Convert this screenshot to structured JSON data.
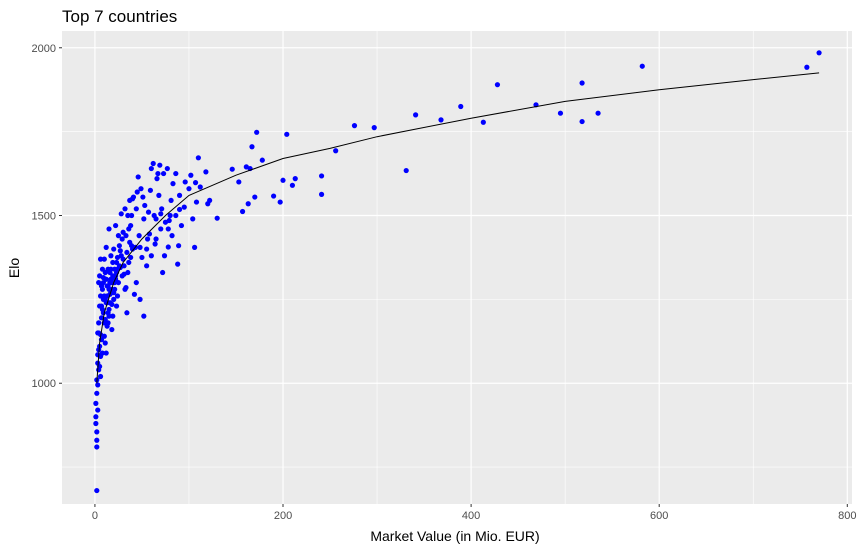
{
  "chart_data": {
    "type": "scatter",
    "title": "Top 7 countries",
    "xlabel": "Market Value (in Mio. EUR)",
    "ylabel": "Elo",
    "xlim": [
      -35,
      805
    ],
    "ylim": [
      640,
      2050
    ],
    "xticks": [
      0,
      200,
      400,
      600,
      800
    ],
    "yticks": [
      1000,
      1500,
      2000
    ],
    "grid": true,
    "point_color": "#0000FF",
    "trend_color": "#000000",
    "panel_background": "#EBEBEB",
    "points": [
      [
        770,
        1985
      ],
      [
        757,
        1942
      ],
      [
        582,
        1945
      ],
      [
        535,
        1805
      ],
      [
        518,
        1895
      ],
      [
        518,
        1780
      ],
      [
        495,
        1805
      ],
      [
        469,
        1830
      ],
      [
        428,
        1890
      ],
      [
        413,
        1778
      ],
      [
        389,
        1825
      ],
      [
        368,
        1785
      ],
      [
        341,
        1800
      ],
      [
        331,
        1634
      ],
      [
        297,
        1762
      ],
      [
        276,
        1768
      ],
      [
        256,
        1693
      ],
      [
        241,
        1618
      ],
      [
        241,
        1563
      ],
      [
        213,
        1610
      ],
      [
        210,
        1590
      ],
      [
        204,
        1742
      ],
      [
        200,
        1605
      ],
      [
        197,
        1540
      ],
      [
        190,
        1558
      ],
      [
        178,
        1665
      ],
      [
        172,
        1748
      ],
      [
        170,
        1555
      ],
      [
        167,
        1705
      ],
      [
        165,
        1640
      ],
      [
        163,
        1535
      ],
      [
        161,
        1645
      ],
      [
        157,
        1512
      ],
      [
        153,
        1600
      ],
      [
        146,
        1638
      ],
      [
        130,
        1492
      ],
      [
        122,
        1545
      ],
      [
        120,
        1535
      ],
      [
        118,
        1630
      ],
      [
        112,
        1585
      ],
      [
        110,
        1672
      ],
      [
        107,
        1598
      ],
      [
        106,
        1405
      ],
      [
        104,
        1490
      ],
      [
        100,
        1580
      ],
      [
        95,
        1525
      ],
      [
        92,
        1470
      ],
      [
        90,
        1518
      ],
      [
        89,
        1410
      ],
      [
        88,
        1355
      ],
      [
        86,
        1625
      ],
      [
        83,
        1595
      ],
      [
        81,
        1545
      ],
      [
        80,
        1500
      ],
      [
        79,
        1485
      ],
      [
        78,
        1460
      ],
      [
        78,
        1406
      ],
      [
        77,
        1640
      ],
      [
        74,
        1380
      ],
      [
        73,
        1625
      ],
      [
        72,
        1330
      ],
      [
        71,
        1520
      ],
      [
        70,
        1505
      ],
      [
        69,
        1650
      ],
      [
        68,
        1560
      ],
      [
        67,
        1625
      ],
      [
        66,
        1610
      ],
      [
        65,
        1490
      ],
      [
        64,
        1415
      ],
      [
        63,
        1500
      ],
      [
        62,
        1655
      ],
      [
        60,
        1640
      ],
      [
        59,
        1575
      ],
      [
        58,
        1445
      ],
      [
        57,
        1510
      ],
      [
        56,
        1430
      ],
      [
        55,
        1400
      ],
      [
        53,
        1530
      ],
      [
        52,
        1490
      ],
      [
        51,
        1555
      ],
      [
        50,
        1375
      ],
      [
        49,
        1580
      ],
      [
        48,
        1405
      ],
      [
        47,
        1440
      ],
      [
        46,
        1615
      ],
      [
        45,
        1570
      ],
      [
        44,
        1520
      ],
      [
        43,
        1405
      ],
      [
        42,
        1265
      ],
      [
        41,
        1555
      ],
      [
        40,
        1550
      ],
      [
        39,
        1410
      ],
      [
        38,
        1375
      ],
      [
        37,
        1545
      ],
      [
        36,
        1460
      ],
      [
        35,
        1500
      ],
      [
        34,
        1210
      ],
      [
        33,
        1285
      ],
      [
        32,
        1520
      ],
      [
        31,
        1325
      ],
      [
        30,
        1450
      ],
      [
        29,
        1430
      ],
      [
        28,
        1505
      ],
      [
        27,
        1395
      ],
      [
        26,
        1350
      ],
      [
        25,
        1440
      ],
      [
        24,
        1375
      ],
      [
        23,
        1330
      ],
      [
        22,
        1470
      ],
      [
        21,
        1300
      ],
      [
        20,
        1400
      ],
      [
        19,
        1360
      ],
      [
        18,
        1235
      ],
      [
        17,
        1310
      ],
      [
        16,
        1265
      ],
      [
        15,
        1460
      ],
      [
        14,
        1340
      ],
      [
        13,
        1290
      ],
      [
        12,
        1405
      ],
      [
        11,
        1250
      ],
      [
        10,
        1370
      ],
      [
        9,
        1315
      ],
      [
        8,
        1220
      ],
      [
        7,
        1195
      ],
      [
        6,
        1145
      ],
      [
        5,
        1110
      ],
      [
        4,
        1300
      ],
      [
        3,
        1060
      ],
      [
        2,
        1010
      ],
      [
        1,
        940
      ],
      [
        1,
        880
      ],
      [
        2,
        830
      ],
      [
        2,
        810
      ],
      [
        2,
        680
      ],
      [
        3,
        920
      ],
      [
        3,
        1085
      ],
      [
        4,
        1150
      ],
      [
        4,
        1180
      ],
      [
        5,
        1230
      ],
      [
        6,
        1260
      ],
      [
        7,
        1290
      ],
      [
        8,
        1340
      ],
      [
        9,
        1250
      ],
      [
        10,
        1180
      ],
      [
        11,
        1120
      ],
      [
        12,
        1090
      ],
      [
        13,
        1170
      ],
      [
        14,
        1210
      ],
      [
        15,
        1280
      ],
      [
        16,
        1330
      ],
      [
        17,
        1380
      ],
      [
        18,
        1160
      ],
      [
        19,
        1200
      ],
      [
        20,
        1270
      ],
      [
        21,
        1340
      ],
      [
        22,
        1320
      ],
      [
        23,
        1360
      ],
      [
        24,
        1260
      ],
      [
        25,
        1300
      ],
      [
        26,
        1410
      ],
      [
        27,
        1345
      ],
      [
        28,
        1380
      ],
      [
        29,
        1320
      ],
      [
        30,
        1370
      ],
      [
        31,
        1350
      ],
      [
        32,
        1280
      ],
      [
        33,
        1440
      ],
      [
        34,
        1390
      ],
      [
        35,
        1330
      ],
      [
        36,
        1360
      ],
      [
        37,
        1420
      ],
      [
        38,
        1470
      ],
      [
        39,
        1500
      ],
      [
        40,
        1400
      ],
      [
        5,
        1320
      ],
      [
        6,
        1370
      ],
      [
        7,
        1230
      ],
      [
        8,
        1280
      ],
      [
        9,
        1300
      ],
      [
        10,
        1260
      ],
      [
        11,
        1330
      ],
      [
        12,
        1310
      ],
      [
        13,
        1240
      ],
      [
        14,
        1290
      ],
      [
        15,
        1200
      ],
      [
        16,
        1240
      ],
      [
        17,
        1270
      ],
      [
        18,
        1300
      ],
      [
        19,
        1320
      ],
      [
        20,
        1250
      ],
      [
        21,
        1280
      ],
      [
        22,
        1310
      ],
      [
        23,
        1230
      ],
      [
        24,
        1340
      ],
      [
        3,
        1150
      ],
      [
        4,
        1100
      ],
      [
        5,
        1050
      ],
      [
        6,
        1020
      ],
      [
        7,
        1130
      ],
      [
        8,
        1090
      ],
      [
        9,
        1210
      ],
      [
        10,
        1140
      ],
      [
        11,
        1190
      ],
      [
        12,
        1240
      ],
      [
        13,
        1260
      ],
      [
        14,
        1180
      ],
      [
        15,
        1220
      ],
      [
        16,
        1300
      ],
      [
        17,
        1340
      ],
      [
        18,
        1280
      ],
      [
        2,
        970
      ],
      [
        3,
        995
      ],
      [
        4,
        1040
      ],
      [
        6,
        1080
      ],
      [
        1,
        900
      ],
      [
        2,
        855
      ],
      [
        44,
        1300
      ],
      [
        48,
        1250
      ],
      [
        52,
        1200
      ],
      [
        55,
        1350
      ],
      [
        60,
        1380
      ],
      [
        65,
        1430
      ],
      [
        70,
        1460
      ],
      [
        75,
        1480
      ],
      [
        82,
        1440
      ],
      [
        86,
        1500
      ],
      [
        90,
        1560
      ],
      [
        96,
        1600
      ],
      [
        102,
        1620
      ],
      [
        108,
        1540
      ]
    ],
    "trend": [
      [
        2,
        1000
      ],
      [
        5,
        1120
      ],
      [
        10,
        1210
      ],
      [
        20,
        1300
      ],
      [
        30,
        1360
      ],
      [
        50,
        1430
      ],
      [
        75,
        1500
      ],
      [
        100,
        1560
      ],
      [
        150,
        1620
      ],
      [
        200,
        1670
      ],
      [
        250,
        1700
      ],
      [
        300,
        1735
      ],
      [
        400,
        1790
      ],
      [
        500,
        1840
      ],
      [
        600,
        1875
      ],
      [
        700,
        1905
      ],
      [
        770,
        1925
      ]
    ]
  }
}
